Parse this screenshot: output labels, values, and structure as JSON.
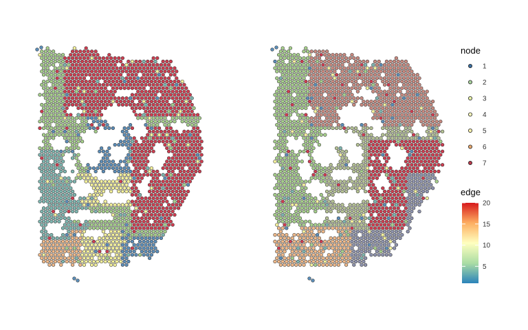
{
  "chart_data": {
    "type": "scatter",
    "panels": [
      {
        "name": "",
        "color_mode": "edge",
        "spot_outline_color": "#333333"
      },
      {
        "name": "",
        "color_mode": "node",
        "spot_outline_color": "#333333"
      }
    ],
    "legend_node": {
      "title": "node",
      "entries": [
        "1",
        "2",
        "3",
        "4",
        "5",
        "6",
        "7"
      ],
      "colors": [
        "#3B6FA0",
        "#A9D39E",
        "#E9F3A8",
        "#FFFFBF",
        "#FFF6B0",
        "#E8A86F",
        "#B83A4B"
      ]
    },
    "legend_edge": {
      "title": "edge",
      "ticks": [
        5,
        10,
        15,
        20
      ],
      "range": [
        1,
        20
      ],
      "colorscale": [
        "#2B83BA",
        "#ABDDA4",
        "#FFFFBF",
        "#FDAE61",
        "#D7191C"
      ]
    },
    "colors": {
      "blue": "#5B8DB8",
      "teal": "#7EB6B0",
      "green": "#A6CF8B",
      "yellow": "#F4F19C",
      "orange": "#EFB98A",
      "red": "#CF3D50",
      "muted_green": "#B5C294",
      "muted_red": "#C98A80",
      "muted_blue": "#8E93AE"
    }
  }
}
